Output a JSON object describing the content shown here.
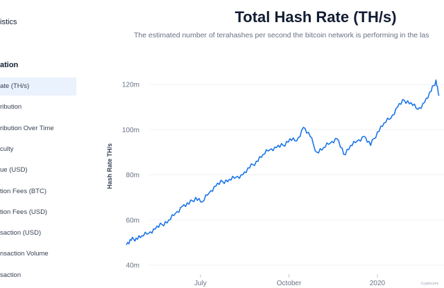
{
  "sidebar": {
    "header": "istics",
    "section": "ation",
    "items": [
      {
        "label": "ate (TH/s)",
        "active": true
      },
      {
        "label": "ribution",
        "active": false
      },
      {
        "label": "ribution Over Time",
        "active": false
      },
      {
        "label": "culty",
        "active": false
      },
      {
        "label": "ue (USD)",
        "active": false
      },
      {
        "label": "tion Fees (BTC)",
        "active": false
      },
      {
        "label": "tion Fees (USD)",
        "active": false
      },
      {
        "label": "saction (USD)",
        "active": false
      },
      {
        "label": "nsaction Volume",
        "active": false
      },
      {
        "label": "saction",
        "active": false
      }
    ]
  },
  "colors": {
    "line": "#1b75e8",
    "accent": "#eaf2fd"
  },
  "watermark": "Cryptocomi",
  "chart_data": {
    "type": "line",
    "title": "Total Hash Rate (TH/s)",
    "subtitle": "The estimated number of terahashes per second the bitcoin network is performing in the las",
    "ylabel": "Hash Rate TH/s",
    "xlabel": "",
    "ylim": [
      40,
      126
    ],
    "yticks": [
      {
        "value": 40,
        "label": "40m"
      },
      {
        "value": 60,
        "label": "60m"
      },
      {
        "value": 80,
        "label": "80m"
      },
      {
        "value": 100,
        "label": "100m"
      },
      {
        "value": 120,
        "label": "120m"
      }
    ],
    "xticks": [
      {
        "label": "July",
        "x": "2019-07-01"
      },
      {
        "label": "October",
        "x": "2019-10-01"
      },
      {
        "label": "2020",
        "x": "2020-01-01"
      }
    ],
    "grid": "horizontal",
    "series": [
      {
        "x": [
          "2019-04-15",
          "2019-04-20",
          "2019-04-25",
          "2019-05-01",
          "2019-05-08",
          "2019-05-15",
          "2019-05-22",
          "2019-05-29",
          "2019-06-05",
          "2019-06-12",
          "2019-06-19",
          "2019-06-26",
          "2019-07-03",
          "2019-07-10",
          "2019-07-17",
          "2019-07-24",
          "2019-07-31",
          "2019-08-07",
          "2019-08-14",
          "2019-08-21",
          "2019-08-28",
          "2019-09-04",
          "2019-09-11",
          "2019-09-18",
          "2019-09-25",
          "2019-10-02",
          "2019-10-09",
          "2019-10-16",
          "2019-10-23",
          "2019-10-30",
          "2019-11-06",
          "2019-11-13",
          "2019-11-20",
          "2019-11-27",
          "2019-12-04",
          "2019-12-11",
          "2019-12-18",
          "2019-12-25",
          "2020-01-01",
          "2020-01-08",
          "2020-01-15",
          "2020-01-22",
          "2020-01-29",
          "2020-02-05",
          "2020-02-12",
          "2020-02-19",
          "2020-02-26",
          "2020-03-02",
          "2020-03-05"
        ],
        "values": [
          49,
          51,
          52,
          53,
          54,
          56,
          58,
          60,
          63,
          66,
          67,
          70,
          68,
          72,
          75,
          77,
          78,
          79,
          80,
          83,
          86,
          89,
          91,
          92,
          93,
          96,
          95,
          101,
          97,
          90,
          92,
          94,
          96,
          89,
          93,
          95,
          97,
          93,
          99,
          103,
          105,
          110,
          113,
          112,
          109,
          112,
          117,
          122,
          115
        ]
      }
    ]
  }
}
